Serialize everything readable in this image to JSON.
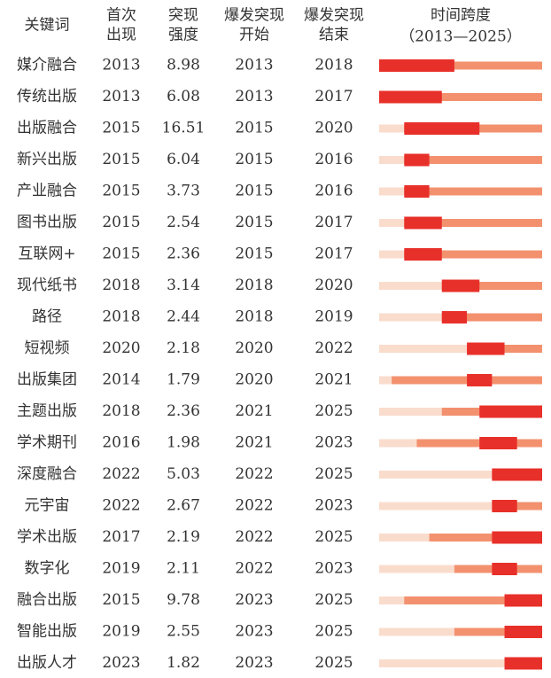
{
  "table": {
    "header": [
      [
        "关键词"
      ],
      [
        "首次",
        "出现"
      ],
      [
        "突现",
        "强度"
      ],
      [
        "爆发突现",
        "开始"
      ],
      [
        "爆发突现",
        "结束"
      ]
    ],
    "span": {
      "title": "时间跨度",
      "value": [
        2013,
        2025
      ],
      "label": "（2013—2025）"
    },
    "colors": {
      "before": "#fadccd",
      "active": "#f3916f",
      "burst": "#e8302a"
    },
    "rows": [
      [
        "媒介融合",
        2013,
        8.98,
        2013,
        2018
      ],
      [
        "传统出版",
        2013,
        6.08,
        2013,
        2017
      ],
      [
        "出版融合",
        2015,
        16.51,
        2015,
        2020
      ],
      [
        "新兴出版",
        2015,
        6.04,
        2015,
        2016
      ],
      [
        "产业融合",
        2015,
        3.73,
        2015,
        2016
      ],
      [
        "图书出版",
        2015,
        2.54,
        2015,
        2017
      ],
      [
        "互联网+",
        2015,
        2.36,
        2015,
        2017
      ],
      [
        "现代纸书",
        2018,
        3.14,
        2018,
        2020
      ],
      [
        "路径",
        2018,
        2.44,
        2018,
        2019
      ],
      [
        "短视频",
        2020,
        2.18,
        2020,
        2022
      ],
      [
        "出版集团",
        2014,
        1.79,
        2020,
        2021
      ],
      [
        "主题出版",
        2018,
        2.36,
        2021,
        2025
      ],
      [
        "学术期刊",
        2016,
        1.98,
        2021,
        2023
      ],
      [
        "深度融合",
        2022,
        5.03,
        2022,
        2025
      ],
      [
        "元宇宙",
        2022,
        2.67,
        2022,
        2023
      ],
      [
        "学术出版",
        2017,
        2.19,
        2022,
        2025
      ],
      [
        "数字化",
        2019,
        2.11,
        2022,
        2023
      ],
      [
        "融合出版",
        2015,
        9.78,
        2023,
        2025
      ],
      [
        "智能出版",
        2019,
        2.55,
        2023,
        2025
      ],
      [
        "出版人才",
        2023,
        1.82,
        2023,
        2025
      ]
    ]
  }
}
